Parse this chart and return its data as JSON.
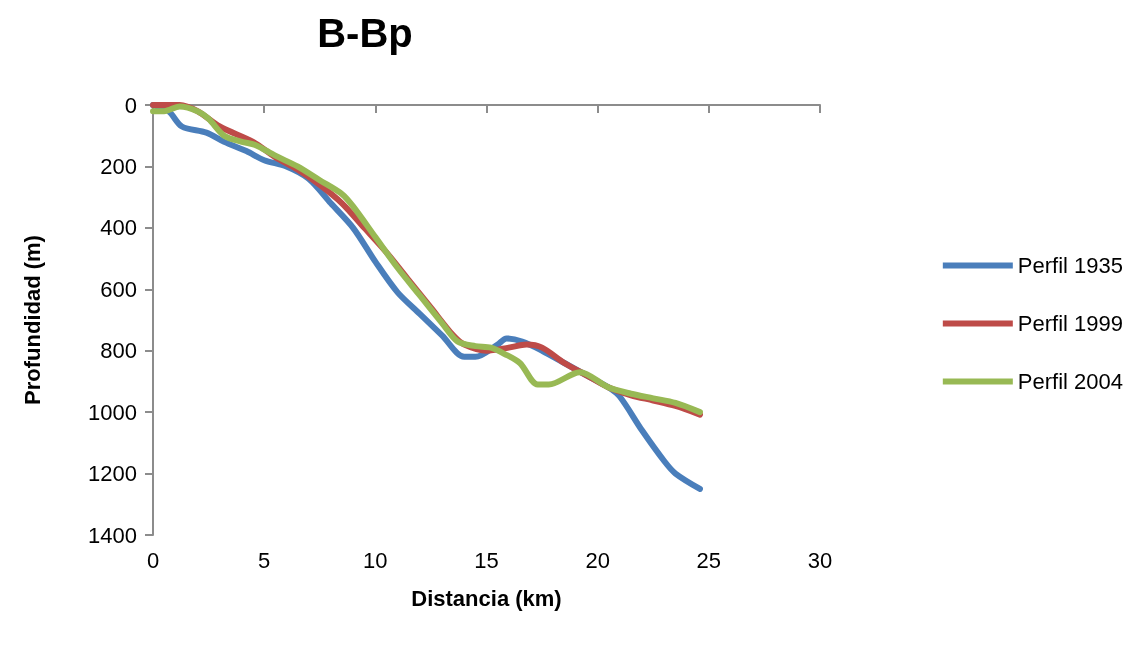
{
  "chart_data": {
    "type": "line",
    "title": "B-Bp",
    "xlabel": "Distancia (km)",
    "ylabel": "Profundidad (m)",
    "xlim": [
      0,
      30
    ],
    "xticks": [
      0,
      5,
      10,
      15,
      20,
      25,
      30
    ],
    "ylim": [
      1400,
      0
    ],
    "yticks": [
      0,
      200,
      400,
      600,
      800,
      1000,
      1200,
      1400
    ],
    "grid": false,
    "legend": "right",
    "marker": "none",
    "line_style": "solid",
    "series": [
      {
        "name": "Perfil 1935",
        "color": "#4a7ebb",
        "x": [
          0,
          0.7,
          1.3,
          2.4,
          3.2,
          4.2,
          5,
          6,
          7,
          8,
          9,
          10,
          11,
          12,
          13,
          14,
          14.5,
          15.5,
          15.9,
          16.6,
          17.5,
          18.5,
          19.5,
          20.5,
          21,
          22,
          23,
          23.5,
          24.6
        ],
        "values": [
          0,
          20,
          70,
          90,
          120,
          150,
          180,
          200,
          240,
          320,
          400,
          510,
          610,
          680,
          750,
          820,
          820,
          780,
          760,
          770,
          800,
          840,
          880,
          920,
          950,
          1060,
          1160,
          1200,
          1250
        ]
      },
      {
        "name": "Perfil 1999",
        "color": "#be4b48",
        "x": [
          0,
          1.2,
          2,
          3,
          4.5,
          5.5,
          6.5,
          7.5,
          8.5,
          9.5,
          10.5,
          11.5,
          12.5,
          13.5,
          14,
          15,
          16,
          16.8,
          17.5,
          18.5,
          19.5,
          20.5,
          21.5,
          22.5,
          23.5,
          24.6
        ],
        "values": [
          0,
          0,
          20,
          70,
          120,
          170,
          210,
          260,
          320,
          400,
          480,
          570,
          660,
          750,
          780,
          800,
          790,
          780,
          790,
          840,
          880,
          920,
          945,
          962,
          980,
          1008
        ]
      },
      {
        "name": "Perfil 2004",
        "color": "#98b954",
        "x": [
          0,
          0.5,
          1.2,
          2,
          2.5,
          3.2,
          4,
          4.6,
          5.5,
          6.5,
          7.5,
          8.5,
          9,
          10,
          11,
          12,
          13,
          13.7,
          14.5,
          15.2,
          15.8,
          16.5,
          17.3,
          17.8,
          19.2,
          20.5,
          21.5,
          22.5,
          23.5,
          24.6
        ],
        "values": [
          20,
          20,
          5,
          20,
          45,
          100,
          120,
          130,
          165,
          200,
          245,
          290,
          330,
          430,
          530,
          620,
          710,
          770,
          785,
          790,
          810,
          840,
          910,
          910,
          870,
          920,
          940,
          955,
          970,
          1000
        ]
      }
    ]
  }
}
